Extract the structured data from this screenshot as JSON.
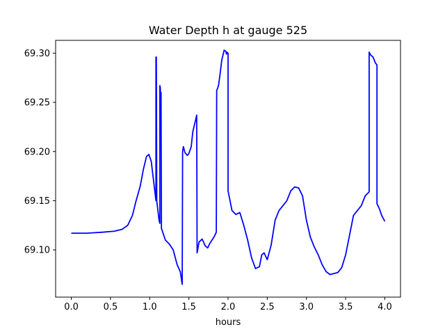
{
  "chart_data": {
    "type": "line",
    "title": "Water Depth h at gauge 525",
    "xlabel": "hours",
    "ylabel": "",
    "xlim": [
      -0.2,
      4.2
    ],
    "ylim": [
      69.052,
      69.313
    ],
    "xticks": [
      0.0,
      0.5,
      1.0,
      1.5,
      2.0,
      2.5,
      3.0,
      3.5,
      4.0
    ],
    "xtick_labels": [
      "0.0",
      "0.5",
      "1.0",
      "1.5",
      "2.0",
      "2.5",
      "3.0",
      "3.5",
      "4.0"
    ],
    "yticks": [
      69.1,
      69.15,
      69.2,
      69.25,
      69.3
    ],
    "ytick_labels": [
      "69.10",
      "69.15",
      "69.20",
      "69.25",
      "69.30"
    ],
    "grid": false,
    "series": [
      {
        "color": "#0000ff",
        "points": [
          [
            0.0,
            69.117
          ],
          [
            0.2,
            69.117
          ],
          [
            0.4,
            69.118
          ],
          [
            0.55,
            69.119
          ],
          [
            0.65,
            69.121
          ],
          [
            0.72,
            69.125
          ],
          [
            0.78,
            69.135
          ],
          [
            0.82,
            69.148
          ],
          [
            0.88,
            69.165
          ],
          [
            0.92,
            69.182
          ],
          [
            0.96,
            69.195
          ],
          [
            0.99,
            69.197
          ],
          [
            1.02,
            69.19
          ],
          [
            1.05,
            69.17
          ],
          [
            1.08,
            69.15
          ],
          [
            1.08,
            69.296
          ],
          [
            1.085,
            69.296
          ],
          [
            1.09,
            69.15
          ],
          [
            1.12,
            69.13
          ],
          [
            1.13,
            69.127
          ],
          [
            1.13,
            69.267
          ],
          [
            1.135,
            69.265
          ],
          [
            1.14,
            69.255
          ],
          [
            1.145,
            69.26
          ],
          [
            1.15,
            69.122
          ],
          [
            1.2,
            69.11
          ],
          [
            1.25,
            69.106
          ],
          [
            1.3,
            69.1
          ],
          [
            1.35,
            69.085
          ],
          [
            1.39,
            69.078
          ],
          [
            1.415,
            69.065
          ],
          [
            1.42,
            69.2
          ],
          [
            1.43,
            69.205
          ],
          [
            1.45,
            69.199
          ],
          [
            1.48,
            69.196
          ],
          [
            1.5,
            69.198
          ],
          [
            1.53,
            69.205
          ],
          [
            1.55,
            69.22
          ],
          [
            1.58,
            69.23
          ],
          [
            1.6,
            69.237
          ],
          [
            1.605,
            69.097
          ],
          [
            1.63,
            69.108
          ],
          [
            1.67,
            69.111
          ],
          [
            1.71,
            69.104
          ],
          [
            1.74,
            69.102
          ],
          [
            1.77,
            69.107
          ],
          [
            1.82,
            69.113
          ],
          [
            1.85,
            69.118
          ],
          [
            1.855,
            69.262
          ],
          [
            1.87,
            69.265
          ],
          [
            1.88,
            69.268
          ],
          [
            1.9,
            69.28
          ],
          [
            1.92,
            69.293
          ],
          [
            1.95,
            69.303
          ],
          [
            1.97,
            69.302
          ],
          [
            1.98,
            69.299
          ],
          [
            1.985,
            69.301
          ],
          [
            2.0,
            69.3
          ],
          [
            2.0,
            69.16
          ],
          [
            2.05,
            69.14
          ],
          [
            2.1,
            69.136
          ],
          [
            2.15,
            69.138
          ],
          [
            2.2,
            69.125
          ],
          [
            2.25,
            69.11
          ],
          [
            2.3,
            69.092
          ],
          [
            2.35,
            69.081
          ],
          [
            2.4,
            69.083
          ],
          [
            2.43,
            69.095
          ],
          [
            2.46,
            69.097
          ],
          [
            2.5,
            69.09
          ],
          [
            2.55,
            69.105
          ],
          [
            2.6,
            69.13
          ],
          [
            2.65,
            69.14
          ],
          [
            2.7,
            69.145
          ],
          [
            2.75,
            69.15
          ],
          [
            2.8,
            69.16
          ],
          [
            2.85,
            69.164
          ],
          [
            2.9,
            69.163
          ],
          [
            2.95,
            69.155
          ],
          [
            3.0,
            69.13
          ],
          [
            3.05,
            69.113
          ],
          [
            3.1,
            69.103
          ],
          [
            3.15,
            69.095
          ],
          [
            3.2,
            69.085
          ],
          [
            3.25,
            69.078
          ],
          [
            3.3,
            69.075
          ],
          [
            3.35,
            69.076
          ],
          [
            3.4,
            69.077
          ],
          [
            3.45,
            69.082
          ],
          [
            3.5,
            69.095
          ],
          [
            3.55,
            69.115
          ],
          [
            3.6,
            69.135
          ],
          [
            3.65,
            69.14
          ],
          [
            3.7,
            69.145
          ],
          [
            3.75,
            69.155
          ],
          [
            3.8,
            69.159
          ],
          [
            3.8,
            69.301
          ],
          [
            3.82,
            69.298
          ],
          [
            3.85,
            69.296
          ],
          [
            3.88,
            69.29
          ],
          [
            3.9,
            69.288
          ],
          [
            3.9,
            69.147
          ],
          [
            3.93,
            69.142
          ],
          [
            3.96,
            69.135
          ],
          [
            4.0,
            69.129
          ]
        ]
      }
    ]
  }
}
